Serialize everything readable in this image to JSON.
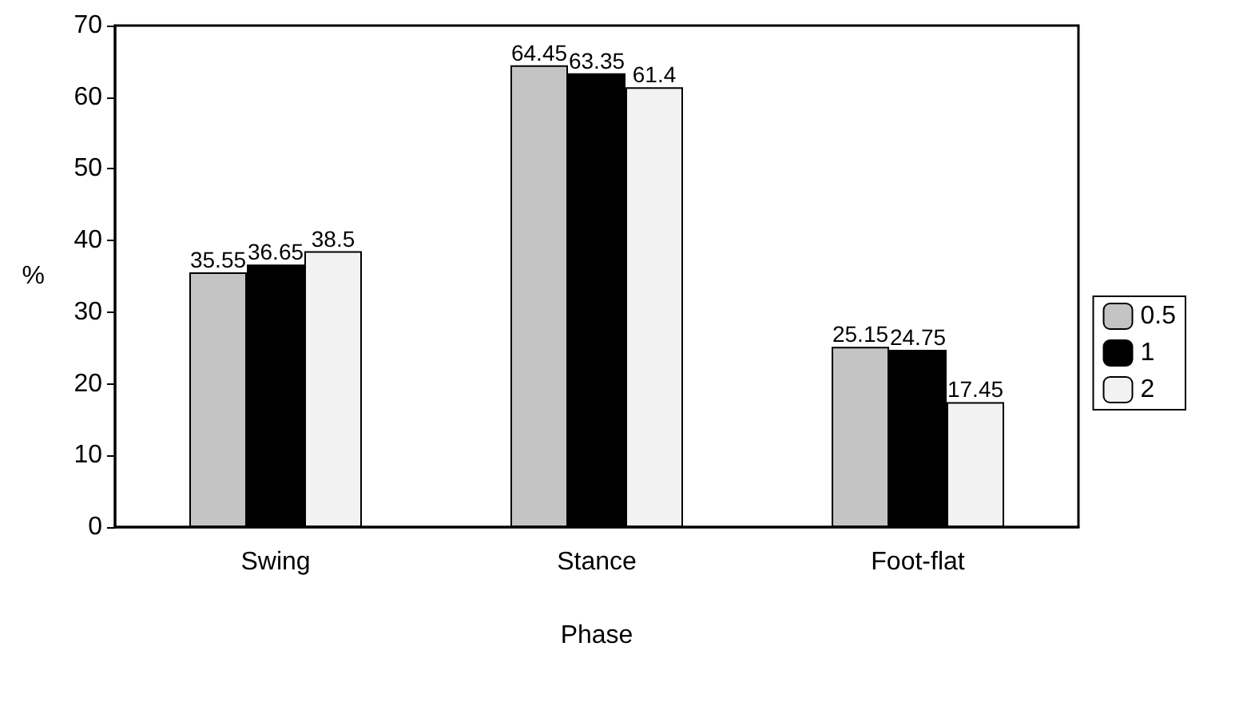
{
  "chart_data": {
    "type": "bar",
    "xlabel": "Phase",
    "ylabel": "%",
    "categories": [
      "Swing",
      "Stance",
      "Foot-flat"
    ],
    "series": [
      {
        "name": "0.5",
        "color": "#c4c4c4",
        "values": [
          35.55,
          64.45,
          25.15
        ]
      },
      {
        "name": "1",
        "color": "#000000",
        "values": [
          36.65,
          63.35,
          24.75
        ]
      },
      {
        "name": "2",
        "color": "#f2f2f2",
        "values": [
          38.5,
          61.4,
          17.45
        ]
      }
    ],
    "ylim": [
      0,
      70
    ],
    "yticks": [
      0,
      10,
      20,
      30,
      40,
      50,
      60,
      70
    ],
    "data_labels": true,
    "legend": "right",
    "grid": false
  }
}
